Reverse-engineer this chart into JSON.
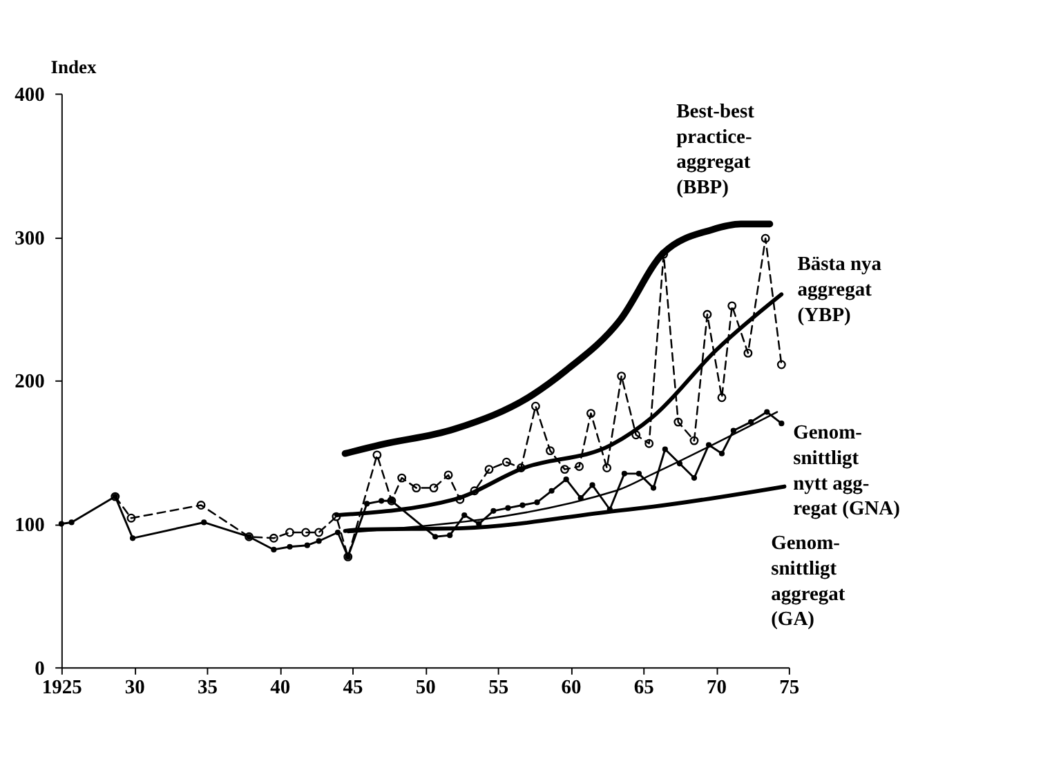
{
  "chart_data": {
    "type": "line",
    "ylabel": "Index",
    "xlim": [
      1925,
      1975
    ],
    "xticks": [
      {
        "value": 1925,
        "label": "1925"
      },
      {
        "value": 1930,
        "label": "30"
      },
      {
        "value": 1935,
        "label": "35"
      },
      {
        "value": 1940,
        "label": "40"
      },
      {
        "value": 1945,
        "label": "45"
      },
      {
        "value": 1950,
        "label": "50"
      },
      {
        "value": 1955,
        "label": "55"
      },
      {
        "value": 1960,
        "label": "60"
      },
      {
        "value": 1965,
        "label": "65"
      },
      {
        "value": 1970,
        "label": "70"
      },
      {
        "value": 1975,
        "label": "75"
      }
    ],
    "ylim": [
      0,
      400
    ],
    "yticks": [
      0,
      100,
      200,
      300,
      400
    ],
    "grid": false,
    "series": [
      {
        "name": "Best-best\npractice-\naggregat\n(BBP)",
        "color": "#000000",
        "marker": "none",
        "line_style": "solid",
        "x": [
          1944.5,
          1946.9,
          1952,
          1957.4,
          1959.7,
          1963.4,
          1966.4,
          1969.7,
          1971.7,
          1973.7
        ],
        "values": [
          149,
          155,
          166,
          190,
          207,
          242,
          289,
          305,
          309,
          309
        ]
      },
      {
        "name": "Bästa nya\naggregat\n(YBP)",
        "color": "#000000",
        "marker": "none",
        "line_style": "solid",
        "x": [
          1943.9,
          1952,
          1956.8,
          1962.8,
          1965.7,
          1970,
          1974.5
        ],
        "values": [
          106,
          117,
          139,
          155,
          175,
          221,
          260
        ]
      },
      {
        "name": "Genom-\nsnittligt\nnytt agg-\nregat (GNA)",
        "color": "#000000",
        "marker": "none",
        "line_style": "solid",
        "x": [
          1944.7,
          1963.1,
          1965.7,
          1974.2
        ],
        "values": [
          94,
          123,
          135,
          178
        ]
      },
      {
        "name": "Genom-\nsnittligt\naggregat\n(GA)",
        "color": "#000000",
        "marker": "none",
        "line_style": "solid",
        "x": [
          1944.5,
          1945.5,
          1952.6,
          1963.1,
          1965.7,
          1974.7
        ],
        "values": [
          95,
          96,
          97,
          109,
          112,
          126
        ]
      },
      {
        "color": "#000000",
        "marker": "circle",
        "line_style": "dashed",
        "x": [
          1928.7,
          1929.8,
          1934.6,
          1937.9,
          1939.6,
          1940.7,
          1941.8,
          1942.7,
          1943.9,
          1944.7,
          1946.7,
          1947.7,
          1948.4,
          1949.4,
          1950.6,
          1951.6,
          1952.4,
          1953.4,
          1954.4,
          1955.6,
          1956.6,
          1957.6,
          1958.6,
          1959.6,
          1960.6,
          1961.4,
          1962.5,
          1963.5,
          1964.5,
          1965.4,
          1966.4,
          1967.4,
          1968.5,
          1969.4,
          1970.4,
          1971.1,
          1972.2,
          1973.4,
          1974.5
        ],
        "values": [
          119,
          104,
          113,
          91,
          90,
          94,
          94,
          94,
          105,
          77,
          148,
          116,
          132,
          125,
          125,
          134,
          117,
          123,
          138,
          143,
          139,
          182,
          151,
          138,
          140,
          177,
          139,
          203,
          162,
          156,
          288,
          171,
          158,
          246,
          188,
          252,
          219,
          299,
          211
        ]
      },
      {
        "color": "#000000",
        "marker": "circle_filled",
        "line_style": "solid",
        "x": [
          1925,
          1925.7,
          1928.7,
          1929.9,
          1934.8,
          1937.9,
          1939.6,
          1940.7,
          1941.9,
          1942.7,
          1944,
          1944.7,
          1946,
          1947,
          1947.7,
          1950.7,
          1951.7,
          1952.7,
          1953.7,
          1954.7,
          1955.7,
          1956.7,
          1957.7,
          1958.7,
          1959.7,
          1960.7,
          1961.5,
          1962.7,
          1963.7,
          1964.7,
          1965.7,
          1966.5,
          1967.5,
          1968.5,
          1969.5,
          1970.4,
          1971.2,
          1972.4,
          1973.5,
          1974.5
        ],
        "values": [
          100,
          101,
          119,
          90,
          101,
          91,
          82,
          84,
          85,
          88,
          94,
          77,
          114,
          116,
          116,
          91,
          92,
          106,
          100,
          109,
          111,
          113,
          115,
          123,
          131,
          118,
          127,
          110,
          135,
          135,
          125,
          152,
          142,
          132,
          155,
          149,
          165,
          171,
          178,
          170
        ]
      }
    ]
  }
}
